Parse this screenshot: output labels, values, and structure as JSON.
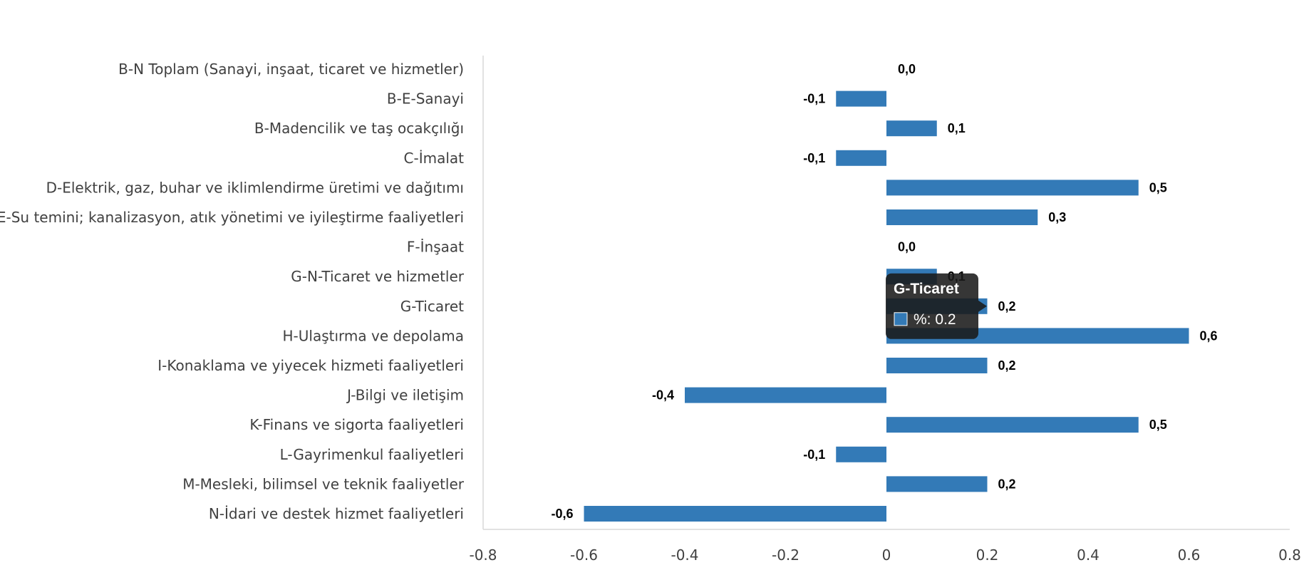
{
  "chart_data": {
    "type": "bar",
    "orientation": "horizontal",
    "categories": [
      "B-N Toplam (Sanayi, inşaat, ticaret ve hizmetler)",
      "B-E-Sanayi",
      "B-Madencilik ve taş ocakçılığı",
      "C-İmalat",
      "D-Elektrik, gaz, buhar ve iklimlendirme üretimi ve dağıtımı",
      "E-Su temini; kanalizasyon, atık yönetimi ve iyileştirme faaliyetleri",
      "F-İnşaat",
      "G-N-Ticaret ve hizmetler",
      "G-Ticaret",
      "H-Ulaştırma ve depolama",
      "I-Konaklama ve yiyecek hizmeti faaliyetleri",
      "J-Bilgi ve iletişim",
      "K-Finans ve sigorta faaliyetleri",
      "L-Gayrimenkul faaliyetleri",
      "M-Mesleki, bilimsel ve teknik faaliyetler",
      "N-İdari ve destek hizmet faaliyetleri"
    ],
    "values": [
      0.0,
      -0.1,
      0.1,
      -0.1,
      0.5,
      0.3,
      0.0,
      0.1,
      0.2,
      0.6,
      0.2,
      -0.4,
      0.5,
      -0.1,
      0.2,
      -0.6
    ],
    "data_labels": [
      "0,0",
      "-0,1",
      "0,1",
      "-0,1",
      "0,5",
      "0,3",
      "0,0",
      "0,1",
      "0,2",
      "0,6",
      "0,2",
      "-0,4",
      "0,5",
      "-0,1",
      "0,2",
      "-0,6"
    ],
    "x_ticks": [
      "-0.8",
      "-0.6",
      "-0.4",
      "-0.2",
      "0",
      "0.2",
      "0.4",
      "0.6",
      "0.8"
    ],
    "xlim": [
      -0.8,
      0.8
    ],
    "bar_color": "#337ab7",
    "title": "",
    "xlabel": "",
    "ylabel": "",
    "grid": false,
    "legend": "none"
  },
  "tooltip": {
    "visible": true,
    "category_index": 8,
    "title": "G-Ticaret",
    "value_text": "%: 0.2",
    "background": "#1a1a1a",
    "swatch_color": "#337ab7"
  }
}
